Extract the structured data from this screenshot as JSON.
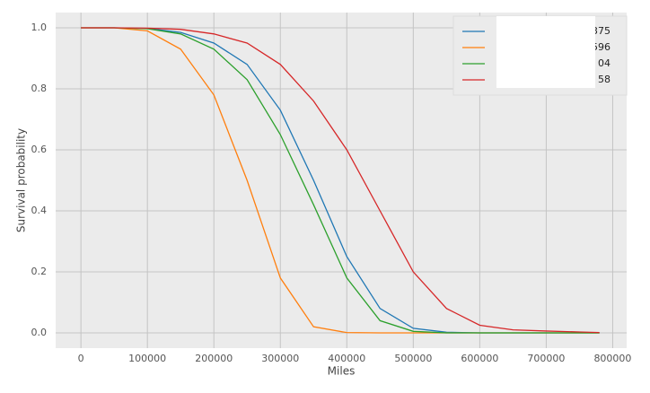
{
  "chart_data": {
    "type": "line",
    "x_label": "Miles",
    "y_label": "Survival probability",
    "x": [
      0,
      50000,
      100000,
      150000,
      200000,
      250000,
      300000,
      350000,
      400000,
      450000,
      500000,
      550000,
      600000,
      650000,
      700000,
      750000,
      780000
    ],
    "series": [
      {
        "name": "375",
        "color": "#1f77b4",
        "values": [
          1,
          1,
          0.998,
          0.985,
          0.95,
          0.88,
          0.73,
          0.5,
          0.25,
          0.08,
          0.015,
          0.002,
          0,
          0,
          0,
          0,
          0
        ]
      },
      {
        "name": "596",
        "color": "#ff7f0e",
        "values": [
          1,
          1,
          0.99,
          0.93,
          0.78,
          0.5,
          0.18,
          0.02,
          0.001,
          0,
          0,
          0,
          0,
          0,
          0,
          0,
          0
        ]
      },
      {
        "name": "04",
        "color": "#2ca02c",
        "values": [
          1,
          1,
          0.997,
          0.98,
          0.93,
          0.83,
          0.65,
          0.42,
          0.18,
          0.04,
          0.005,
          0,
          0,
          0,
          0,
          0,
          0
        ]
      },
      {
        "name": "58",
        "color": "#d62728",
        "values": [
          1,
          1,
          0.999,
          0.995,
          0.98,
          0.95,
          0.88,
          0.76,
          0.6,
          0.4,
          0.2,
          0.08,
          0.025,
          0.01,
          0.006,
          0.003,
          0.001
        ]
      }
    ],
    "xlim": [
      -38000,
      821000
    ],
    "ylim": [
      -0.05,
      1.05
    ],
    "xticks": [
      0,
      100000,
      200000,
      300000,
      400000,
      500000,
      600000,
      700000,
      800000
    ],
    "yticks": [
      {
        "value": 0,
        "label": "0.0"
      },
      0.2,
      0.4,
      0.6,
      0.8,
      {
        "value": 1,
        "label": "1.0"
      }
    ],
    "grid": true,
    "legend": "upper right"
  }
}
